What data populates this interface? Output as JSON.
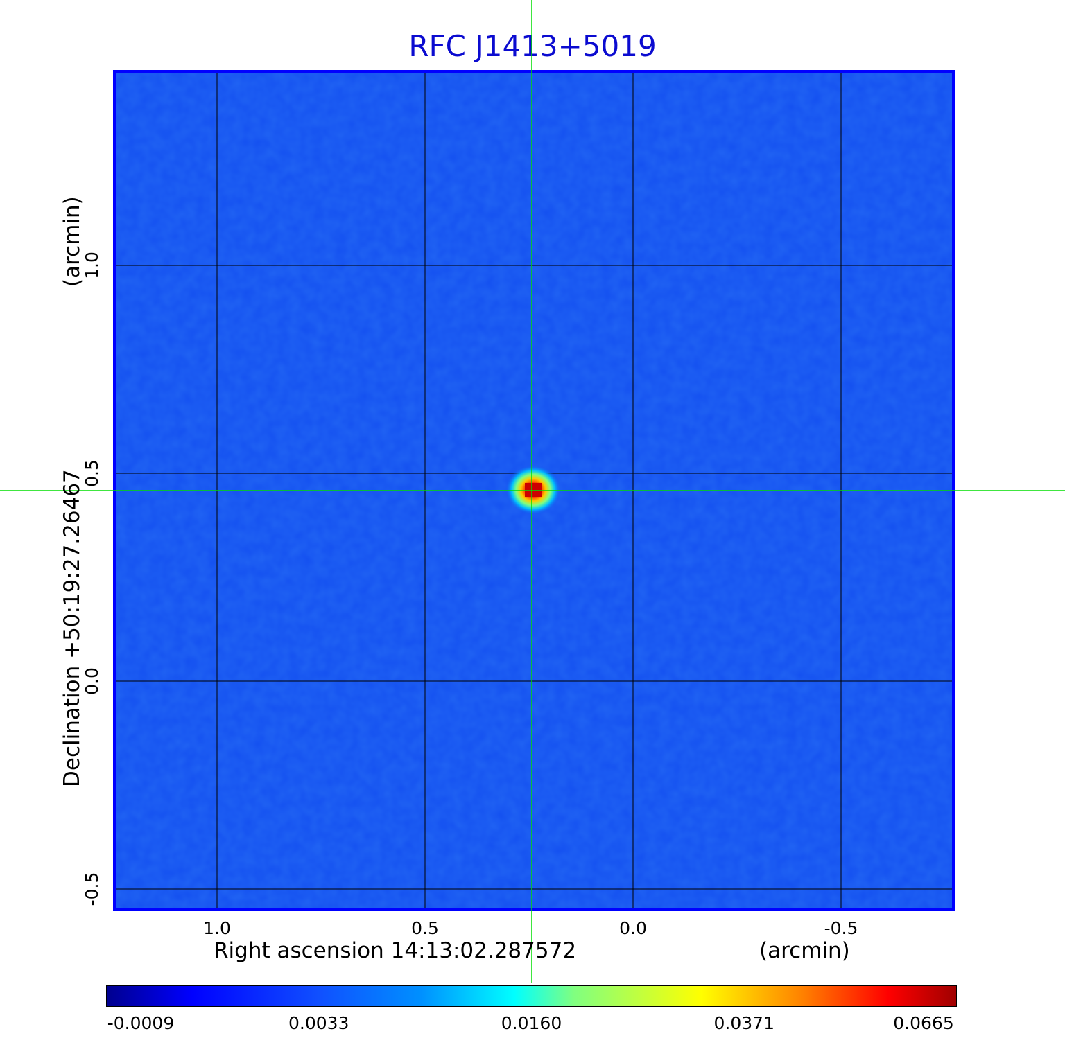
{
  "title": "RFC J1413+5019",
  "x_axis": {
    "label": "Right ascension  14:13:02.287572",
    "unit": "(arcmin)",
    "ticks": [
      "1.0",
      "0.5",
      "0.0",
      "-0.5"
    ],
    "tick_values": [
      1.0,
      0.5,
      0.0,
      -0.5
    ]
  },
  "y_axis": {
    "label": "Declination  +50:19:27.26467",
    "unit": "(arcmin)",
    "ticks": [
      "1.0",
      "0.5",
      "0.0",
      "-0.5"
    ],
    "tick_values": [
      1.0,
      0.5,
      0.0,
      -0.5
    ]
  },
  "colorbar": {
    "ticks": [
      "-0.0009",
      "0.0033",
      "0.0160",
      "0.0371",
      "0.0665"
    ],
    "colormap": "jet"
  },
  "source": {
    "x_arcmin": 0.24,
    "y_arcmin": 0.46
  },
  "colors": {
    "title": "#0b0bd0",
    "background_field": "#1450f0",
    "frame": "#0000ff",
    "crosshair": "#00dd00",
    "grid": "#000000"
  }
}
